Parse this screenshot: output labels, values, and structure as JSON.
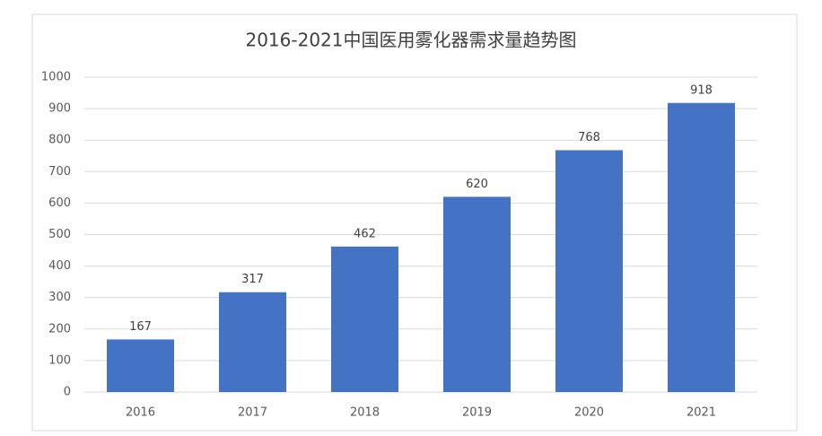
{
  "chart_data": {
    "type": "bar",
    "title": "2016-2021中国医用雾化器需求量趋势图",
    "categories": [
      "2016",
      "2017",
      "2018",
      "2019",
      "2020",
      "2021"
    ],
    "values": [
      167,
      317,
      462,
      620,
      768,
      918
    ],
    "color": "#4472c4",
    "ylim": [
      0,
      1000
    ],
    "yticks": [
      0,
      100,
      200,
      300,
      400,
      500,
      600,
      700,
      800,
      900,
      1000
    ],
    "grid": true
  }
}
